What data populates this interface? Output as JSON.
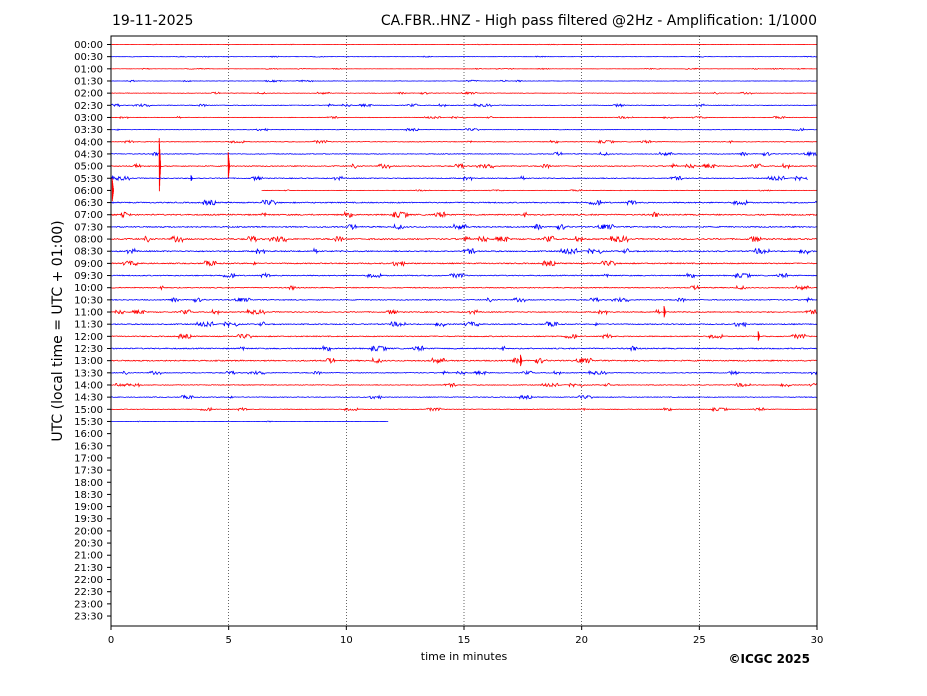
{
  "header": {
    "date": "19-11-2025",
    "title": "CA.FBR..HNZ - High pass filtered @2Hz - Amplification: 1/1000"
  },
  "copyright": "©ICGC 2025",
  "colors": {
    "odd_trace": "#ff0000",
    "even_trace": "#0000ff",
    "grid": "#000000"
  },
  "chart_data": {
    "type": "line",
    "title": "CA.FBR..HNZ - High pass filtered @2Hz - Amplification: 1/1000",
    "xlabel": "time in minutes",
    "ylabel": "UTC (local time = UTC + 01:00)",
    "xlim": [
      0,
      30
    ],
    "xticks": [
      0,
      5,
      10,
      15,
      20,
      25,
      30
    ],
    "grid": "vertical dotted at 5-minute intervals",
    "row_labels": [
      "00:00",
      "00:30",
      "01:00",
      "01:30",
      "02:00",
      "02:30",
      "03:00",
      "03:30",
      "04:00",
      "04:30",
      "05:00",
      "05:30",
      "06:00",
      "06:30",
      "07:00",
      "07:30",
      "08:00",
      "08:30",
      "09:00",
      "09:30",
      "10:00",
      "10:30",
      "11:00",
      "11:30",
      "12:00",
      "12:30",
      "13:00",
      "13:30",
      "14:00",
      "14:30",
      "15:00",
      "15:30",
      "16:00",
      "16:30",
      "17:00",
      "17:30",
      "18:00",
      "18:30",
      "19:00",
      "19:30",
      "20:00",
      "20:30",
      "21:00",
      "21:30",
      "22:00",
      "22:30",
      "23:00",
      "23:30"
    ],
    "traces": [
      {
        "row": "00:00",
        "end_min": 30,
        "noise": 0.2
      },
      {
        "row": "00:30",
        "end_min": 30,
        "noise": 0.3
      },
      {
        "row": "01:00",
        "end_min": 30,
        "noise": 0.3
      },
      {
        "row": "01:30",
        "end_min": 30,
        "noise": 0.5
      },
      {
        "row": "02:00",
        "end_min": 30,
        "noise": 0.6
      },
      {
        "row": "02:30",
        "end_min": 30,
        "noise": 0.8
      },
      {
        "row": "03:00",
        "end_min": 30,
        "noise": 0.6
      },
      {
        "row": "03:30",
        "end_min": 30,
        "noise": 0.7
      },
      {
        "row": "04:00",
        "end_min": 30,
        "noise": 0.8
      },
      {
        "row": "04:30",
        "end_min": 30,
        "noise": 1.0
      },
      {
        "row": "05:00",
        "end_min": 30,
        "noise": 1.3,
        "events": [
          {
            "t": 2.05,
            "amp": 28
          },
          {
            "t": 4.98,
            "amp": 14
          }
        ]
      },
      {
        "row": "05:30",
        "end_min": 29.6,
        "noise": 1.2,
        "events": [
          {
            "t": 3.4,
            "amp": 3
          }
        ]
      },
      {
        "row": "06:00",
        "start_min": 6.4,
        "end_min": 30,
        "noise": 0.4,
        "events": [
          {
            "t": 0.05,
            "amp": 12
          }
        ]
      },
      {
        "row": "06:30",
        "end_min": 30,
        "noise": 1.5
      },
      {
        "row": "07:00",
        "end_min": 30,
        "noise": 1.7
      },
      {
        "row": "07:30",
        "end_min": 30,
        "noise": 1.6
      },
      {
        "row": "08:00",
        "end_min": 30,
        "noise": 1.8
      },
      {
        "row": "08:30",
        "end_min": 30,
        "noise": 1.6
      },
      {
        "row": "09:00",
        "end_min": 30,
        "noise": 1.5
      },
      {
        "row": "09:30",
        "end_min": 30,
        "noise": 1.3
      },
      {
        "row": "10:00",
        "end_min": 30,
        "noise": 1.2
      },
      {
        "row": "10:30",
        "end_min": 30,
        "noise": 1.2
      },
      {
        "row": "11:00",
        "end_min": 30,
        "noise": 1.3,
        "events": [
          {
            "t": 23.5,
            "amp": 6
          }
        ]
      },
      {
        "row": "11:30",
        "end_min": 30,
        "noise": 1.4
      },
      {
        "row": "12:00",
        "end_min": 30,
        "noise": 1.3,
        "events": [
          {
            "t": 27.5,
            "amp": 5
          }
        ]
      },
      {
        "row": "12:30",
        "end_min": 30,
        "noise": 1.5
      },
      {
        "row": "13:00",
        "end_min": 30,
        "noise": 1.6,
        "events": [
          {
            "t": 17.4,
            "amp": 6
          }
        ]
      },
      {
        "row": "13:30",
        "end_min": 30,
        "noise": 1.0
      },
      {
        "row": "14:00",
        "end_min": 30,
        "noise": 1.0
      },
      {
        "row": "14:30",
        "end_min": 30,
        "noise": 1.0
      },
      {
        "row": "15:00",
        "end_min": 30,
        "noise": 0.9
      },
      {
        "row": "15:30",
        "end_min": 11.8,
        "noise": 0.3
      }
    ]
  }
}
